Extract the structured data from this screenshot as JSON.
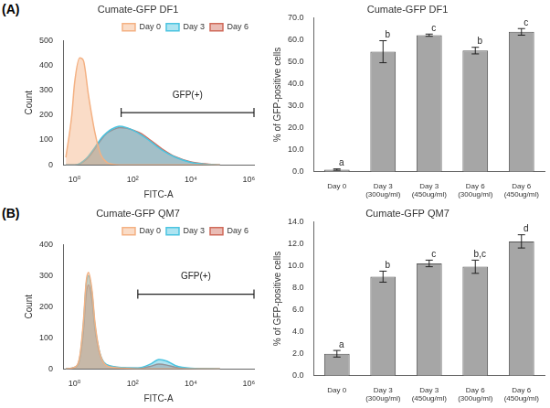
{
  "panel_labels": [
    "(A)",
    "(B)"
  ],
  "chart_data": [
    {
      "type": "line",
      "title": "Cumate-GFP DF1",
      "x_label": "FITC-A",
      "y_label": "Count",
      "log": "x",
      "grid": false,
      "legend": "upper right",
      "x": [
        0.5,
        0.8,
        1,
        1.5,
        2,
        3,
        5,
        8,
        13,
        20,
        35,
        60,
        100,
        200,
        400,
        1000,
        3000,
        10000,
        30000,
        100000
      ],
      "series": [
        {
          "name": "Day 0",
          "color": "#f4b183",
          "values": [
            30,
            200,
            330,
            430,
            420,
            280,
            130,
            40,
            10,
            3,
            0,
            0,
            0,
            0,
            0,
            0,
            0,
            0,
            0,
            0
          ]
        },
        {
          "name": "Day 3",
          "color": "#4bc4e0",
          "values": [
            0,
            0,
            0,
            5,
            15,
            35,
            70,
            105,
            130,
            145,
            155,
            150,
            140,
            120,
            95,
            60,
            30,
            10,
            3,
            0
          ]
        },
        {
          "name": "Day 6",
          "color": "#d06a5a",
          "values": [
            0,
            0,
            0,
            4,
            12,
            30,
            65,
            100,
            128,
            140,
            150,
            148,
            140,
            125,
            100,
            65,
            32,
            12,
            4,
            0
          ]
        }
      ],
      "xlim": [
        0.4,
        1500000
      ],
      "xticks": [
        {
          "value": 1,
          "label": "10⁰"
        },
        {
          "value": 100,
          "label": "10²"
        },
        {
          "value": 10000,
          "label": "10⁴"
        },
        {
          "value": 1000000,
          "label": "10⁶"
        }
      ],
      "ylim": [
        0,
        500
      ],
      "yticks": [
        0,
        100,
        200,
        300,
        400,
        500
      ],
      "gate": {
        "text": "GFP(+)",
        "x": [
          40,
          1500000
        ],
        "y": 210
      }
    },
    {
      "type": "bar",
      "title": "Cumate-GFP DF1",
      "y_label": "% of GFP-positive cells",
      "grid": false,
      "categories": [
        "Day 0",
        [
          "Day 3",
          "(300ug/ml)"
        ],
        [
          "Day 3",
          "(450ug/ml)"
        ],
        [
          "Day 6",
          "(300ug/ml)"
        ],
        [
          "Day 6",
          "(450ug/ml)"
        ]
      ],
      "values": [
        1.0,
        54.5,
        62.0,
        55.0,
        63.5
      ],
      "errors": [
        0.3,
        5.0,
        0.5,
        1.5,
        1.5
      ],
      "letters": [
        "a",
        "b",
        "c",
        "b",
        "c"
      ],
      "color": "#a6a6a6",
      "ylim": [
        0,
        70
      ],
      "yticks": [
        {
          "value": 0,
          "label": "0.0"
        },
        {
          "value": 10,
          "label": "10.0"
        },
        {
          "value": 20,
          "label": "20.0"
        },
        {
          "value": 30,
          "label": "30.0"
        },
        {
          "value": 40,
          "label": "40.0"
        },
        {
          "value": 50,
          "label": "50.0"
        },
        {
          "value": 60,
          "label": "60.0"
        },
        {
          "value": 70,
          "label": "70.0"
        }
      ]
    },
    {
      "type": "line",
      "title": "Cumate-GFP QM7",
      "x_label": "FITC-A",
      "y_label": "Count",
      "log": "x",
      "grid": false,
      "legend": "upper right",
      "x": [
        0.5,
        1,
        1.5,
        2,
        2.5,
        3,
        4,
        5,
        7,
        10,
        20,
        50,
        150,
        400,
        800,
        1500,
        3000,
        10000,
        100000
      ],
      "series": [
        {
          "name": "Day 0",
          "color": "#f4b183",
          "values": [
            0,
            5,
            40,
            150,
            280,
            310,
            250,
            150,
            60,
            20,
            5,
            2,
            0,
            0,
            0,
            0,
            0,
            0,
            0
          ]
        },
        {
          "name": "Day 3",
          "color": "#4bc4e0",
          "values": [
            0,
            5,
            35,
            140,
            270,
            300,
            240,
            140,
            60,
            22,
            8,
            4,
            3,
            15,
            30,
            25,
            10,
            2,
            0
          ]
        },
        {
          "name": "Day 6",
          "color": "#d06a5a",
          "values": [
            0,
            4,
            30,
            120,
            240,
            270,
            220,
            130,
            55,
            20,
            7,
            3,
            2,
            8,
            15,
            12,
            5,
            1,
            0
          ]
        }
      ],
      "xlim": [
        0.4,
        1500000
      ],
      "xticks": [
        {
          "value": 1,
          "label": "10⁰"
        },
        {
          "value": 100,
          "label": "10²"
        },
        {
          "value": 10000,
          "label": "10⁴"
        },
        {
          "value": 1000000,
          "label": "10⁶"
        }
      ],
      "ylim": [
        0,
        400
      ],
      "yticks": [
        0,
        100,
        200,
        300,
        400
      ],
      "gate": {
        "text": "GFP(+)",
        "x": [
          150,
          1500000
        ],
        "y": 240
      }
    },
    {
      "type": "bar",
      "title": "Cumate-GFP QM7",
      "y_label": "% of GFP-positive cells",
      "grid": false,
      "categories": [
        "Day 0",
        [
          "Day 3",
          "(300ug/ml)"
        ],
        [
          "Day 3",
          "(450ug/ml)"
        ],
        [
          "Day 6",
          "(300ug/ml)"
        ],
        [
          "Day 6",
          "(450ug/ml)"
        ]
      ],
      "values": [
        2.0,
        9.0,
        10.2,
        9.9,
        12.2
      ],
      "errors": [
        0.3,
        0.5,
        0.3,
        0.6,
        0.6
      ],
      "letters": [
        "a",
        "b",
        "c",
        "b,c",
        "d"
      ],
      "color": "#a6a6a6",
      "ylim": [
        0,
        14
      ],
      "yticks": [
        {
          "value": 0,
          "label": "0.0"
        },
        {
          "value": 2,
          "label": "2.0"
        },
        {
          "value": 4,
          "label": "4.0"
        },
        {
          "value": 6,
          "label": "6.0"
        },
        {
          "value": 8,
          "label": "8.0"
        },
        {
          "value": 10,
          "label": "10.0"
        },
        {
          "value": 12,
          "label": "12.0"
        },
        {
          "value": 14,
          "label": "14.0"
        }
      ]
    }
  ]
}
